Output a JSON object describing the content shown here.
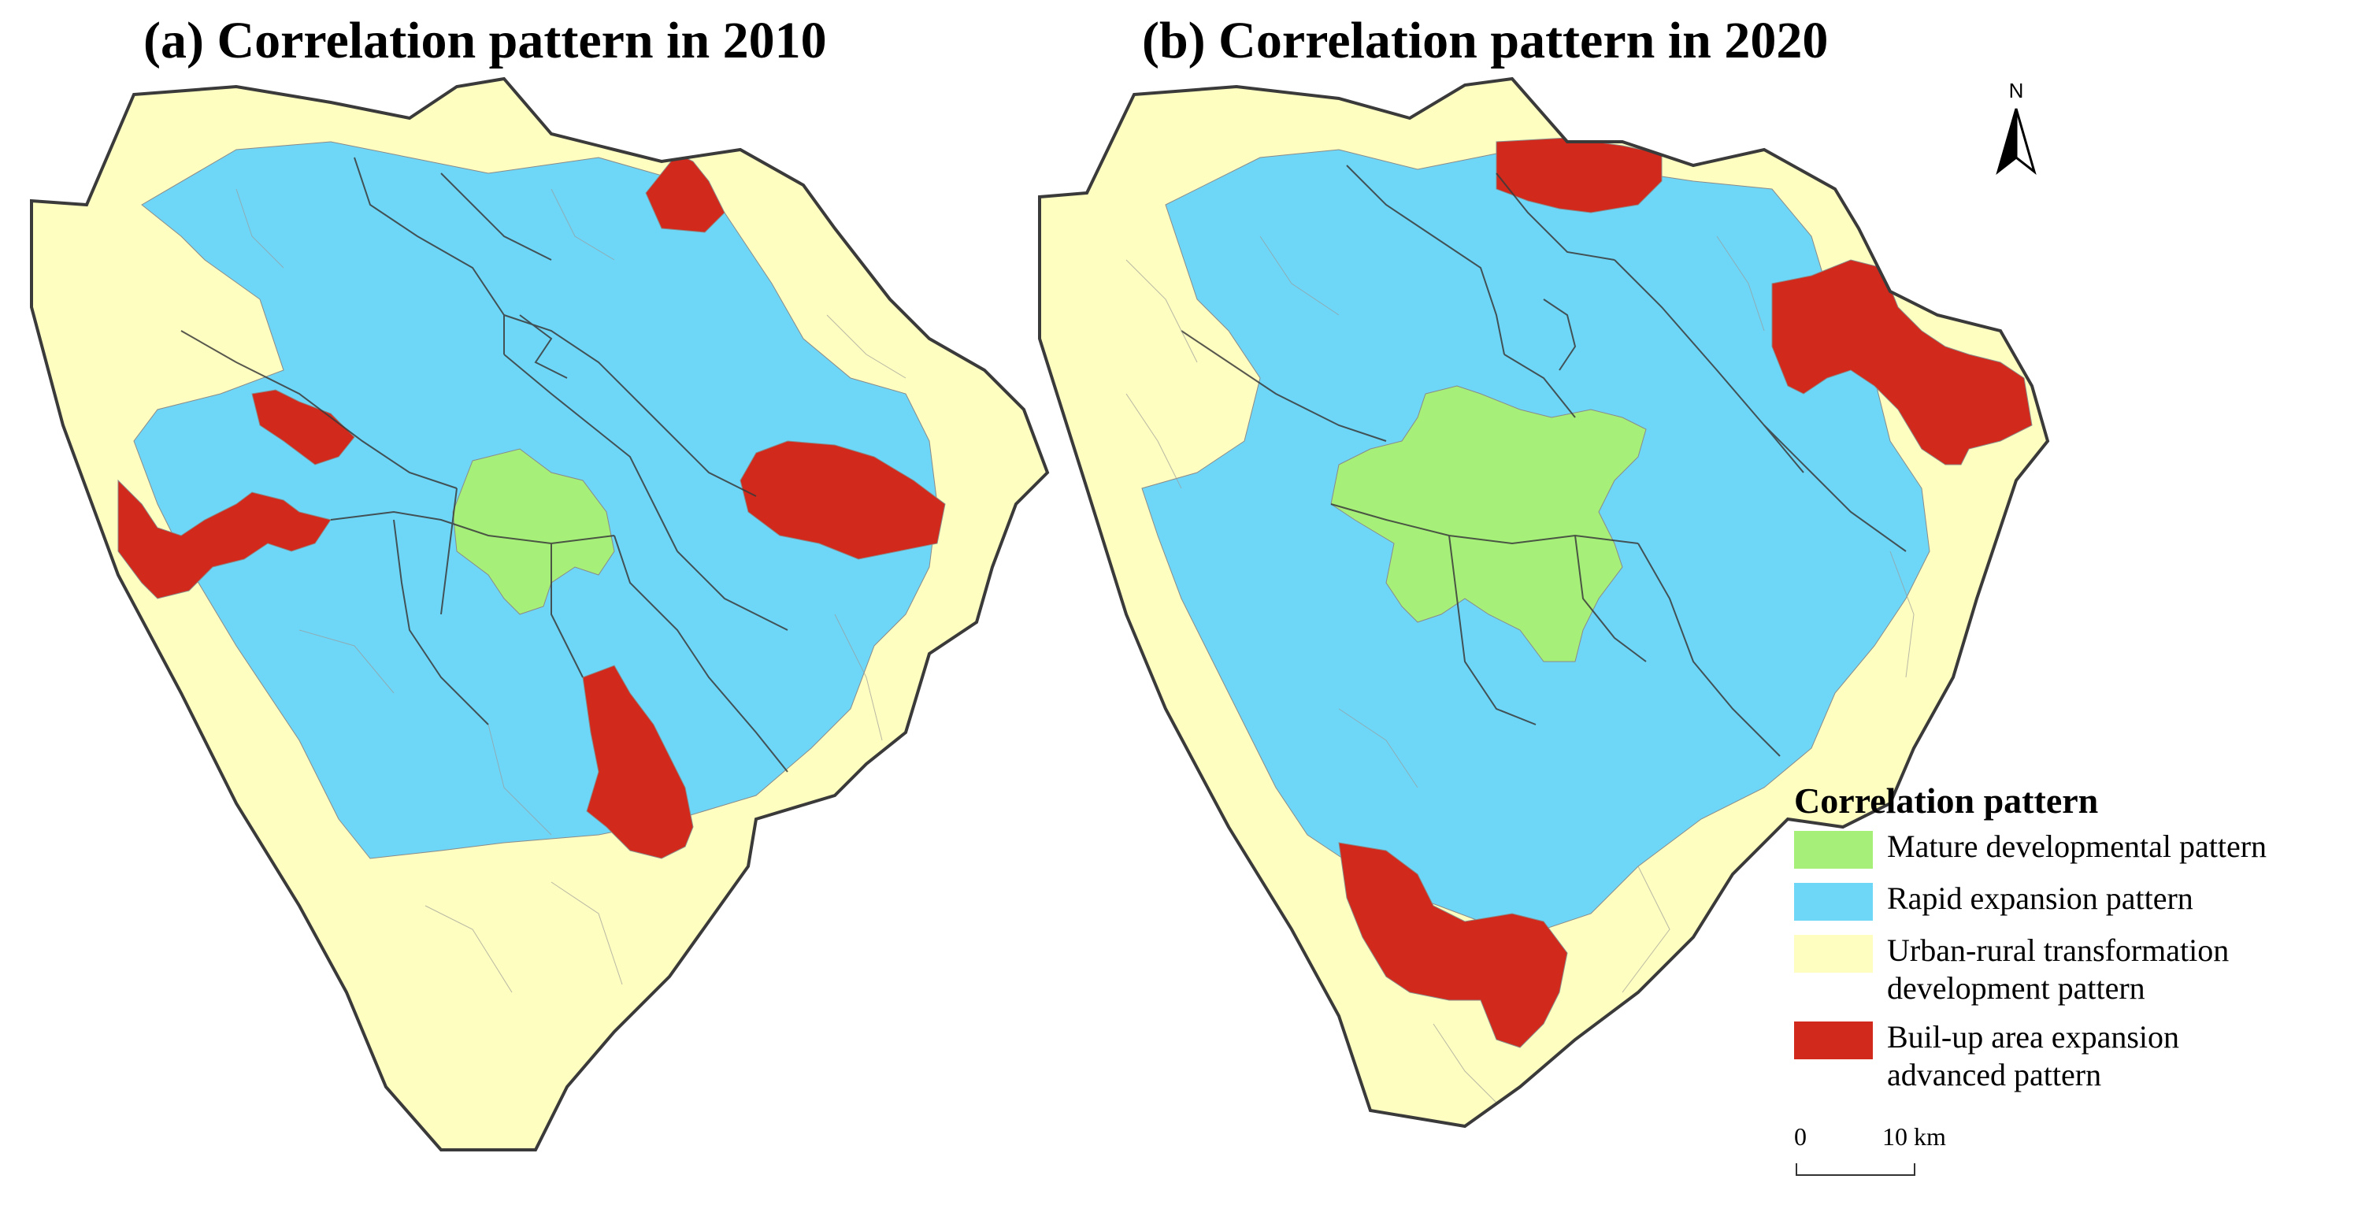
{
  "maps": {
    "a": {
      "title": "(a) Correlation pattern in 2010"
    },
    "b": {
      "title": "(b) Correlation pattern in 2020"
    }
  },
  "legend": {
    "title": "Correlation pattern",
    "items": [
      {
        "label_line1": "Mature developmental pattern",
        "label_line2": "",
        "color": "#a6f07a"
      },
      {
        "label_line1": "Rapid expansion pattern",
        "label_line2": "",
        "color": "#6ed7f7"
      },
      {
        "label_line1": "Urban-rural transformation",
        "label_line2": "development pattern",
        "color": "#fefec0"
      },
      {
        "label_line1": "Buil-up area expansion",
        "label_line2": "advanced pattern",
        "color": "#d1291b"
      }
    ]
  },
  "scale_bar": {
    "start_label": "0",
    "end_label": "10 km"
  },
  "north_arrow": {
    "label": "N"
  },
  "colors": {
    "mature": "#a6f07a",
    "rapid": "#6ed7f7",
    "urban_rural": "#fefec0",
    "advanced": "#d1291b",
    "boundary": "#3a3a3a"
  }
}
